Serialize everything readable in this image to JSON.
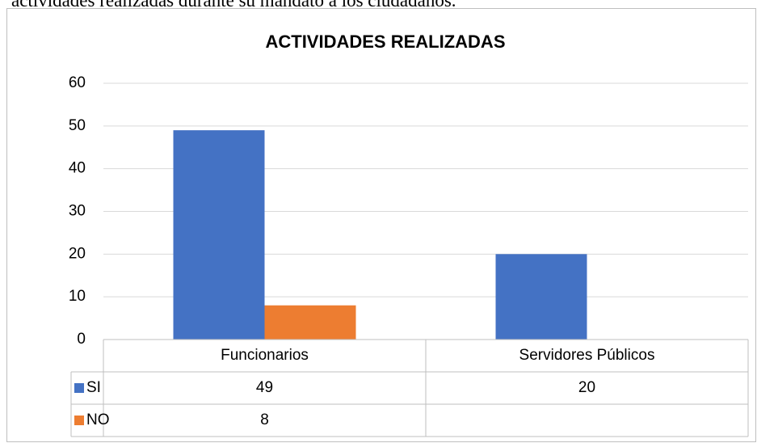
{
  "page_text": "actividades realizadas durante su mandato a los ciudadanos.",
  "chart_data": {
    "type": "bar",
    "title": "ACTIVIDADES REALIZADAS",
    "categories": [
      "Funcionarios",
      "Servidores Públicos"
    ],
    "series": [
      {
        "name": "SI",
        "color": "#4472c4",
        "values": [
          49,
          20
        ]
      },
      {
        "name": "NO",
        "color": "#ed7d31",
        "values": [
          8,
          null
        ]
      }
    ],
    "ylim": [
      0,
      60
    ],
    "yticks": [
      0,
      10,
      20,
      30,
      40,
      50,
      60
    ],
    "grid": true,
    "data_table": true
  }
}
